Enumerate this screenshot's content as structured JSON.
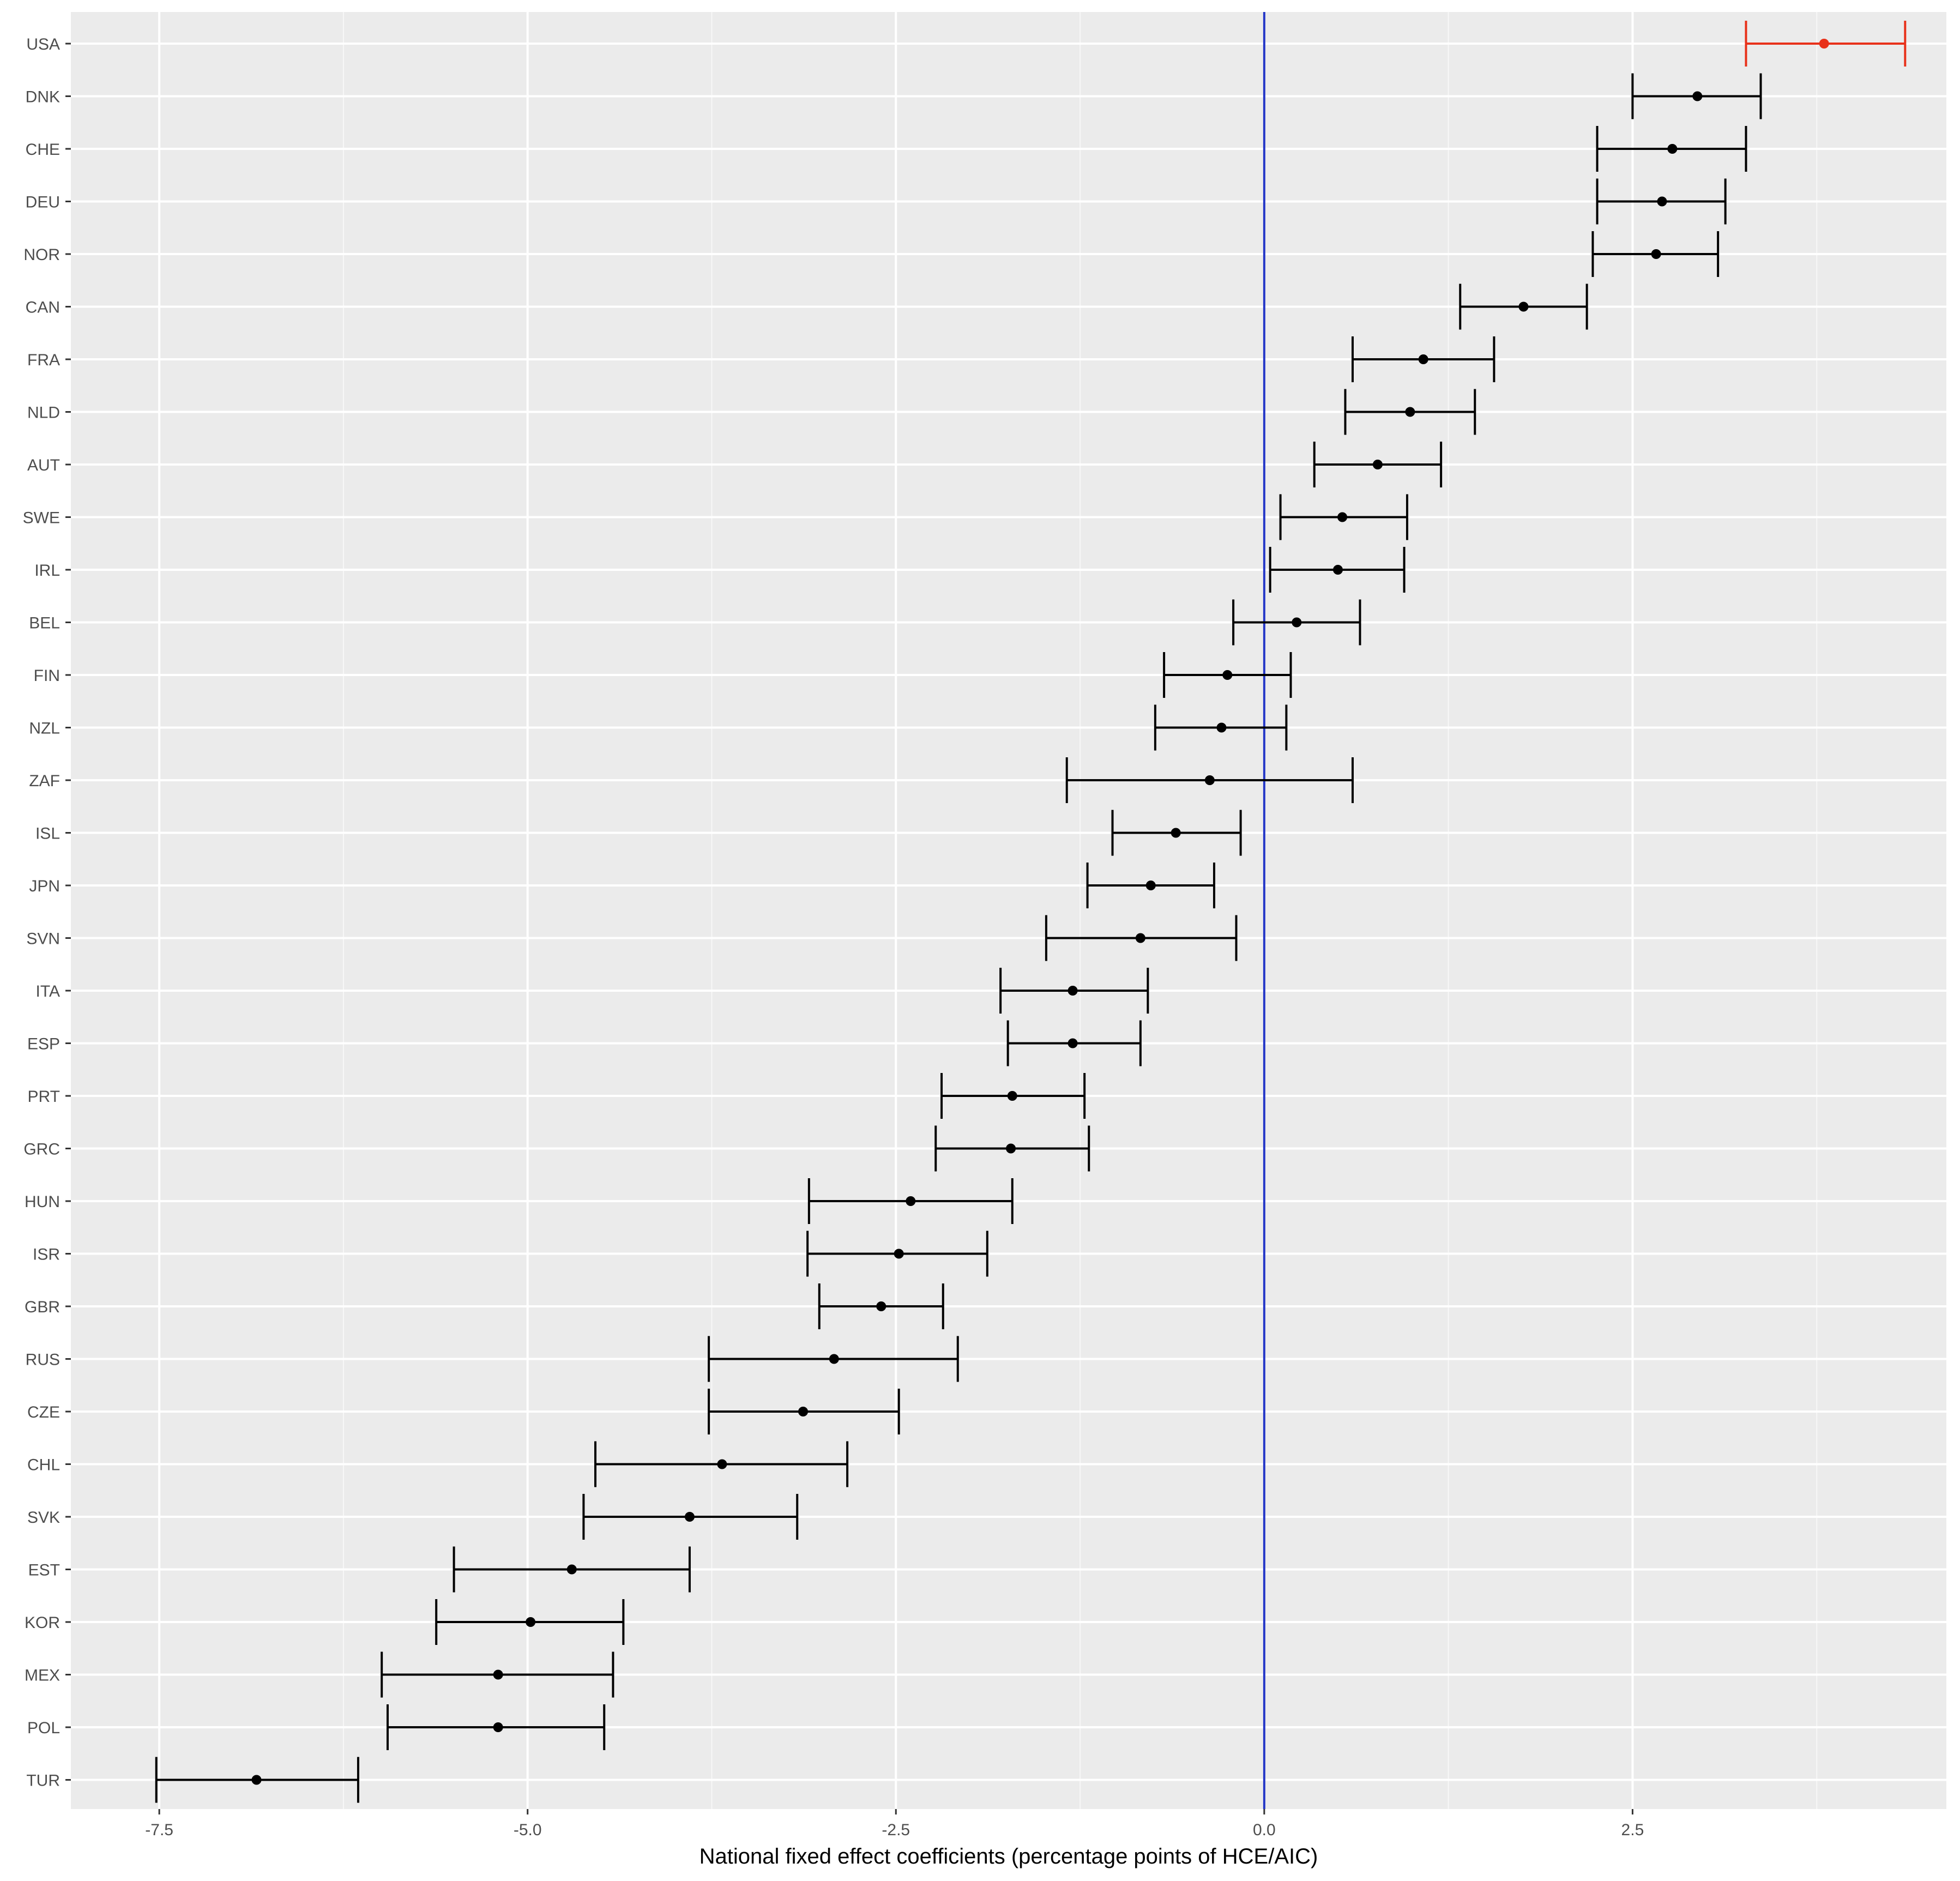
{
  "chart_data": {
    "type": "errorbar",
    "title": "",
    "xlabel": "National fixed effect coefficients (percentage points of HCE/AIC)",
    "ylabel": "",
    "xlim": [
      -8.1,
      4.63
    ],
    "x_ticks": [
      -7.5,
      -5.0,
      -2.5,
      0.0,
      2.5
    ],
    "x_tick_labels": [
      "-7.5",
      "-5.0",
      "-2.5",
      "0.0",
      "2.5"
    ],
    "reference_line": {
      "x": 0.0,
      "color": "#2437c7"
    },
    "grid": true,
    "panel_background": "#ebebeb",
    "default_color": "#000000",
    "highlight_color": "#e8311a",
    "highlight_category": "USA",
    "rows": [
      {
        "label": "USA",
        "value": 3.8,
        "lower": 3.27,
        "upper": 4.35
      },
      {
        "label": "DNK",
        "value": 2.94,
        "lower": 2.5,
        "upper": 3.37
      },
      {
        "label": "CHE",
        "value": 2.77,
        "lower": 2.26,
        "upper": 3.27
      },
      {
        "label": "DEU",
        "value": 2.7,
        "lower": 2.26,
        "upper": 3.13
      },
      {
        "label": "NOR",
        "value": 2.66,
        "lower": 2.23,
        "upper": 3.08
      },
      {
        "label": "CAN",
        "value": 1.76,
        "lower": 1.33,
        "upper": 2.19
      },
      {
        "label": "FRA",
        "value": 1.08,
        "lower": 0.6,
        "upper": 1.56
      },
      {
        "label": "NLD",
        "value": 0.99,
        "lower": 0.55,
        "upper": 1.43
      },
      {
        "label": "AUT",
        "value": 0.77,
        "lower": 0.34,
        "upper": 1.2
      },
      {
        "label": "SWE",
        "value": 0.53,
        "lower": 0.11,
        "upper": 0.97
      },
      {
        "label": "IRL",
        "value": 0.5,
        "lower": 0.04,
        "upper": 0.95
      },
      {
        "label": "BEL",
        "value": 0.22,
        "lower": -0.21,
        "upper": 0.65
      },
      {
        "label": "FIN",
        "value": -0.25,
        "lower": -0.68,
        "upper": 0.18
      },
      {
        "label": "NZL",
        "value": -0.29,
        "lower": -0.74,
        "upper": 0.15
      },
      {
        "label": "ZAF",
        "value": -0.37,
        "lower": -1.34,
        "upper": 0.6
      },
      {
        "label": "ISL",
        "value": -0.6,
        "lower": -1.03,
        "upper": -0.16
      },
      {
        "label": "JPN",
        "value": -0.77,
        "lower": -1.2,
        "upper": -0.34
      },
      {
        "label": "SVN",
        "value": -0.84,
        "lower": -1.48,
        "upper": -0.19
      },
      {
        "label": "ITA",
        "value": -1.3,
        "lower": -1.79,
        "upper": -0.79
      },
      {
        "label": "ESP",
        "value": -1.3,
        "lower": -1.74,
        "upper": -0.84
      },
      {
        "label": "PRT",
        "value": -1.71,
        "lower": -2.19,
        "upper": -1.22
      },
      {
        "label": "GRC",
        "value": -1.72,
        "lower": -2.23,
        "upper": -1.19
      },
      {
        "label": "HUN",
        "value": -2.4,
        "lower": -3.09,
        "upper": -1.71
      },
      {
        "label": "ISR",
        "value": -2.48,
        "lower": -3.1,
        "upper": -1.88
      },
      {
        "label": "GBR",
        "value": -2.6,
        "lower": -3.02,
        "upper": -2.18
      },
      {
        "label": "RUS",
        "value": -2.92,
        "lower": -3.77,
        "upper": -2.08
      },
      {
        "label": "CZE",
        "value": -3.13,
        "lower": -3.77,
        "upper": -2.48
      },
      {
        "label": "CHL",
        "value": -3.68,
        "lower": -4.54,
        "upper": -2.83
      },
      {
        "label": "SVK",
        "value": -3.9,
        "lower": -4.62,
        "upper": -3.17
      },
      {
        "label": "EST",
        "value": -4.7,
        "lower": -5.5,
        "upper": -3.9
      },
      {
        "label": "KOR",
        "value": -4.98,
        "lower": -5.62,
        "upper": -4.35
      },
      {
        "label": "MEX",
        "value": -5.2,
        "lower": -5.99,
        "upper": -4.42
      },
      {
        "label": "POL",
        "value": -5.2,
        "lower": -5.95,
        "upper": -4.48
      },
      {
        "label": "TUR",
        "value": -6.84,
        "lower": -7.52,
        "upper": -6.15
      }
    ]
  }
}
